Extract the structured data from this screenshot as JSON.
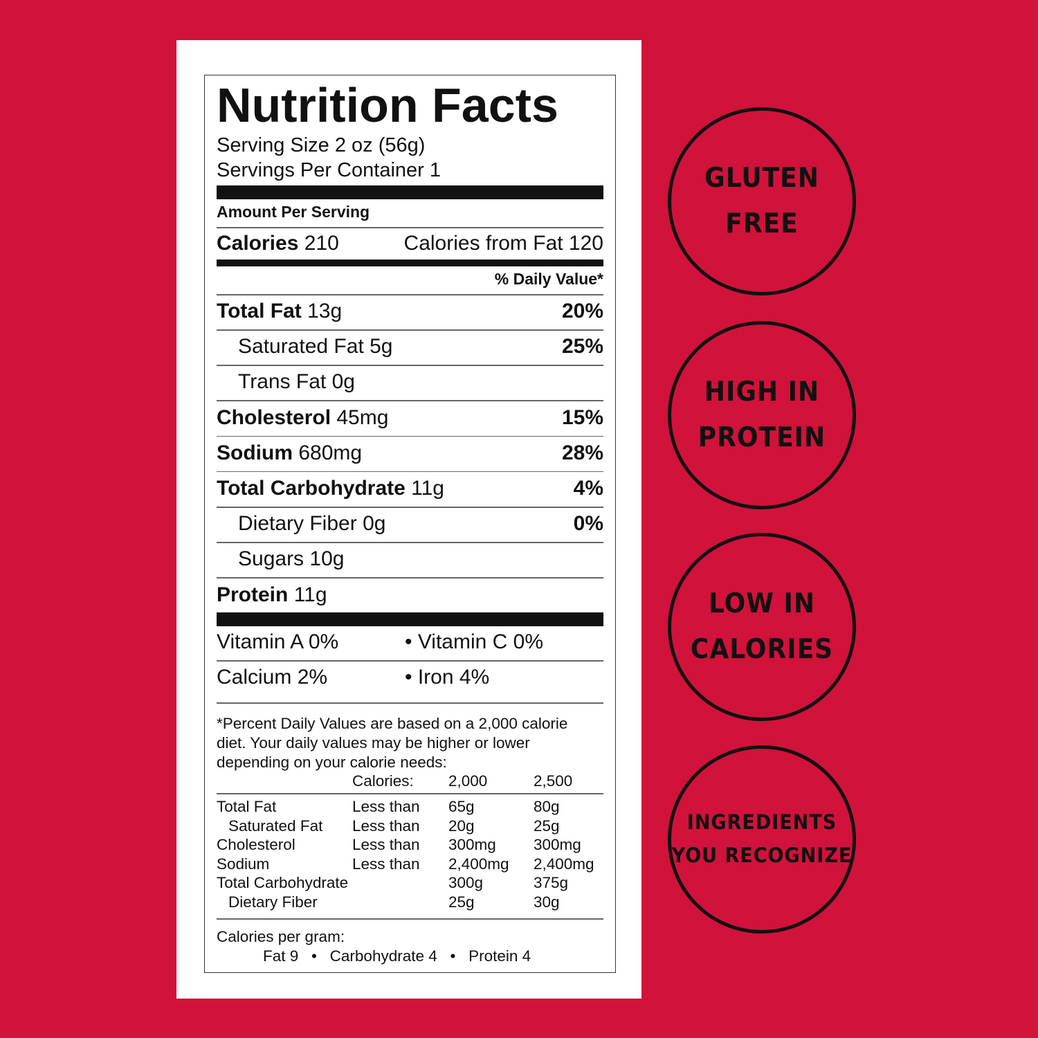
{
  "label": {
    "title": "Nutrition Facts",
    "serving_size": "Serving Size 2 oz (56g)",
    "servings_per_container": "Servings Per Container 1",
    "amount_per_serving": "Amount Per Serving",
    "calories_label": "Calories",
    "calories_value": "210",
    "calories_from_fat": "Calories from Fat 120",
    "daily_value_header": "% Daily Value*",
    "nutrients": [
      {
        "name": "Total Fat",
        "amount": "13g",
        "dv": "20%",
        "bold": true
      },
      {
        "name": "Saturated Fat",
        "amount": "5g",
        "dv": "25%",
        "bold": false
      },
      {
        "name": "Trans Fat",
        "amount": "0g",
        "dv": "",
        "bold": false
      },
      {
        "name": "Cholesterol",
        "amount": "45mg",
        "dv": "15%",
        "bold": true
      },
      {
        "name": "Sodium",
        "amount": "680mg",
        "dv": "28%",
        "bold": true
      },
      {
        "name": "Total Carbohydrate",
        "amount": "11g",
        "dv": "4%",
        "bold": true
      },
      {
        "name": "Dietary Fiber",
        "amount": "0g",
        "dv": "0%",
        "bold": false
      },
      {
        "name": "Sugars",
        "amount": "10g",
        "dv": "",
        "bold": false
      },
      {
        "name": "Protein",
        "amount": "11g",
        "dv": "",
        "bold": true
      }
    ],
    "vitamins": [
      {
        "left": "Vitamin A 0%",
        "right": "• Vitamin C 0%"
      },
      {
        "left": "Calcium 2%",
        "right": "• Iron 4%"
      }
    ],
    "footnote": [
      "*Percent Daily Values are based on a 2,000 calorie",
      "diet. Your daily values may be higher or lower",
      "depending on your calorie needs:"
    ],
    "dv_table": {
      "header": [
        "",
        "Calories:",
        "2,000",
        "2,500"
      ],
      "rows": [
        [
          "Total Fat",
          "Less than",
          "65g",
          "80g"
        ],
        [
          "Saturated Fat",
          "Less than",
          "20g",
          "25g"
        ],
        [
          "Cholesterol",
          "Less than",
          "300mg",
          "300mg"
        ],
        [
          "Sodium",
          "Less than",
          "2,400mg",
          "2,400mg"
        ],
        [
          "Total Carbohydrate",
          "",
          "300g",
          "375g"
        ],
        [
          "Dietary Fiber",
          "",
          "25g",
          "30g"
        ]
      ]
    },
    "calories_per_gram": "Calories per gram:",
    "calories_per_gram_values": "Fat 9   •   Carbohydrate 4   •   Protein 4"
  },
  "badges": [
    {
      "line1": "GLUTEN",
      "line2": "FREE"
    },
    {
      "line1": "HIGH IN",
      "line2": "PROTEIN"
    },
    {
      "line1": "LOW IN",
      "line2": "CALORIES"
    },
    {
      "line1": "INGREDIENTS",
      "line2": "YOU RECOGNIZE"
    }
  ],
  "colors": {
    "background": "#d1123a",
    "panel": "#ffffff",
    "ink": "#111111"
  }
}
